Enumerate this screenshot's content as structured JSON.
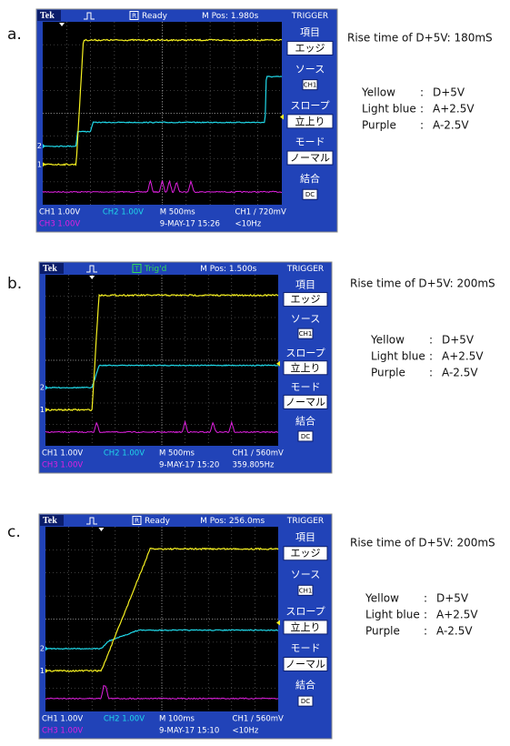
{
  "panels": [
    {
      "label": "a.",
      "scope": {
        "brand": "Tek",
        "status_icon": "R",
        "status": "Ready",
        "status_color": "#ffffff",
        "position": "M Pos: 1.980s",
        "menu_title": "TRIGGER",
        "menu": [
          {
            "heading": "項目",
            "option": "エッジ"
          },
          {
            "heading": "ソース",
            "option": "CH1"
          },
          {
            "heading": "スロープ",
            "option": "立上り"
          },
          {
            "heading": "モード",
            "option": "ノーマル"
          },
          {
            "heading": "結合",
            "option": "DC"
          }
        ],
        "channel_markers": [
          "2",
          "1"
        ],
        "footer": {
          "ch1": "CH1  1.00V",
          "ch2": "CH2  1.00V",
          "ch3": "CH3  1.00V",
          "timebase": "M 500ms",
          "trigger": "CH1 ∕ 720mV",
          "date": "9-MAY-17 15:26",
          "frequency": "<10Hz"
        }
      },
      "note": "Rise time of D+5V: 180mS",
      "legend": [
        {
          "name": "Yellow",
          "sep": ":",
          "value": "D+5V"
        },
        {
          "name": "Light blue",
          "sep": ":",
          "value": "A+2.5V"
        },
        {
          "name": "Purple",
          "sep": ":",
          "value": "A-2.5V"
        }
      ]
    },
    {
      "label": "b.",
      "scope": {
        "brand": "Tek",
        "status_icon": "T",
        "status": "Trig'd",
        "status_color": "#33dd55",
        "position": "M Pos: 1.500s",
        "menu_title": "TRIGGER",
        "menu": [
          {
            "heading": "項目",
            "option": "エッジ"
          },
          {
            "heading": "ソース",
            "option": "CH1"
          },
          {
            "heading": "スロープ",
            "option": "立上り"
          },
          {
            "heading": "モード",
            "option": "ノーマル"
          },
          {
            "heading": "結合",
            "option": "DC"
          }
        ],
        "channel_markers": [
          "2",
          "1"
        ],
        "footer": {
          "ch1": "CH1  1.00V",
          "ch2": "CH2  1.00V",
          "ch3": "CH3  1.00V",
          "timebase": "M 500ms",
          "trigger": "CH1 ∕ 560mV",
          "date": "9-MAY-17 15:20",
          "frequency": "359.805Hz"
        }
      },
      "note": "Rise time of D+5V: 200mS",
      "legend": [
        {
          "name": "Yellow",
          "sep": ":",
          "value": "D+5V"
        },
        {
          "name": "Light blue",
          "sep": ":",
          "value": "A+2.5V"
        },
        {
          "name": "Purple",
          "sep": ":",
          "value": "A-2.5V"
        }
      ]
    },
    {
      "label": "c.",
      "scope": {
        "brand": "Tek",
        "status_icon": "R",
        "status": "Ready",
        "status_color": "#ffffff",
        "position": "M Pos: 256.0ms",
        "menu_title": "TRIGGER",
        "menu": [
          {
            "heading": "項目",
            "option": "エッジ"
          },
          {
            "heading": "ソース",
            "option": "CH1"
          },
          {
            "heading": "スロープ",
            "option": "立上り"
          },
          {
            "heading": "モード",
            "option": "ノーマル"
          },
          {
            "heading": "結合",
            "option": "DC"
          }
        ],
        "channel_markers": [
          "2",
          "1"
        ],
        "footer": {
          "ch1": "CH1  1.00V",
          "ch2": "CH2  1.00V",
          "ch3": "CH3  1.00V",
          "timebase": "M 100ms",
          "trigger": "CH1 ∕ 560mV",
          "date": "9-MAY-17 15:10",
          "frequency": "<10Hz"
        }
      },
      "note": "Rise time of D+5V: 200mS",
      "legend": [
        {
          "name": "Yellow",
          "sep": ":",
          "value": "D+5V"
        },
        {
          "name": "Light blue",
          "sep": ":",
          "value": "A+2.5V"
        },
        {
          "name": "Purple",
          "sep": ":",
          "value": "A-2.5V"
        }
      ]
    }
  ]
}
